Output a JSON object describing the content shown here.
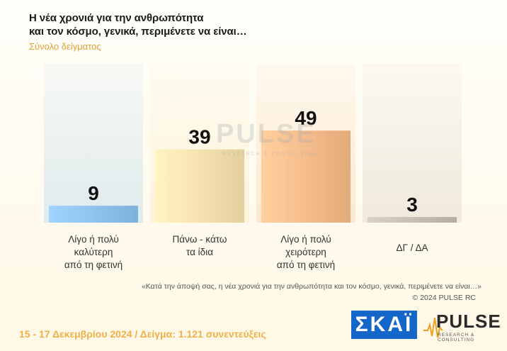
{
  "header": {
    "title_line1": "Η νέα χρονιά για την ανθρωπότητα",
    "title_line2": "και τον κόσμο, γενικά, περιμένετε να είναι…",
    "subtitle": "Σύνολο δείγματος"
  },
  "watermark": {
    "text": "PULSE",
    "subtext": "RESEARCH & CONSULTING"
  },
  "chart_data": {
    "type": "bar",
    "categories": [
      [
        "Λίγο ή πολύ",
        "καλύτερη",
        "από τη φετινή"
      ],
      [
        "Πάνω - κάτω",
        "τα ίδια"
      ],
      [
        "Λίγο ή πολύ",
        "χειρότερη",
        "από τη φετινή"
      ],
      [
        "ΔΓ / ΔΑ"
      ]
    ],
    "values": [
      9,
      39,
      49,
      3
    ],
    "colors": [
      "#8fc3ee",
      "#f6e2b0",
      "#f5bd8c",
      "#c8bfb2"
    ],
    "ylim": [
      0,
      100
    ],
    "grid": false,
    "legend": "none"
  },
  "note": "«Κατά την άποψή σας, η νέα χρονιά για την ανθρωπότητα και τον κόσμο, γενικά, περιμένετε να είναι…»",
  "copyright": "©  2024  PULSE RC",
  "footer": "15 - 17 Δεκεμβρίου 2024  /  Δείγμα:  1.121 συνεντεύξεις",
  "logos": {
    "skai": "ΣΚΑΪ",
    "pulse": "PULSE",
    "pulse_tagline": "RESEARCH & CONSULTING"
  }
}
